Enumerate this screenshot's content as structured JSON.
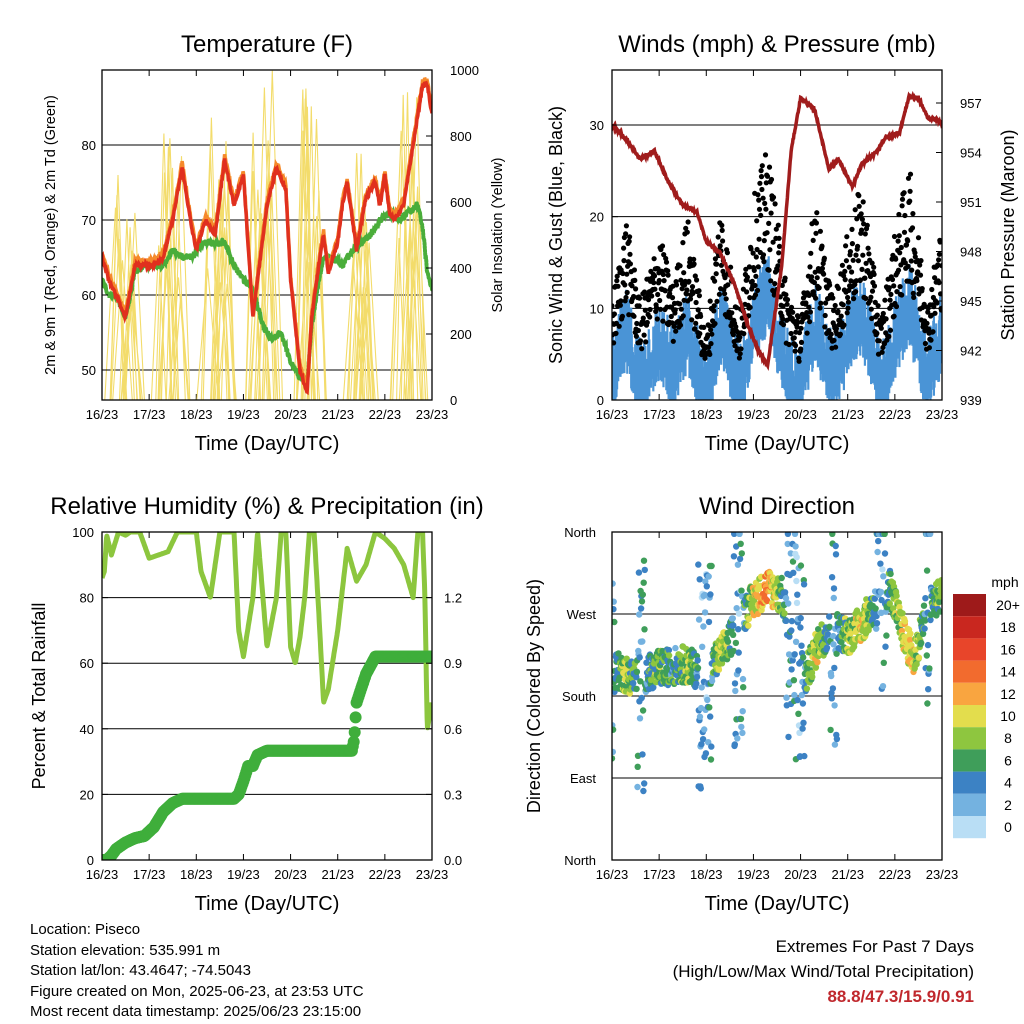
{
  "chart_data": [
    {
      "type": "line",
      "title": "Temperature (F)",
      "xlabel": "Time (Day/UTC)",
      "ylabel": "2m & 9m T (Red, Orange) & 2m Td (Green)",
      "y2label": "Solar Insolation (Yellow)",
      "x_ticks": [
        "16/23",
        "17/23",
        "18/23",
        "19/23",
        "20/23",
        "21/23",
        "22/23",
        "23/23"
      ],
      "y_ticks": [
        "50",
        "60",
        "70",
        "80"
      ],
      "y2_ticks": [
        "0",
        "200",
        "400",
        "600",
        "800",
        "1000"
      ],
      "ylim": [
        46,
        90
      ],
      "y2lim": [
        0,
        1000
      ],
      "grid": true,
      "colors": {
        "t2m": "#e0301e",
        "t9m": "#f5892a",
        "td": "#4aad3a",
        "solar": "#f3dc6b"
      },
      "series": [
        {
          "key": "t2m",
          "x": [
            0,
            0.15,
            0.5,
            0.7,
            0.9,
            1.1,
            1.3,
            1.5,
            1.7,
            1.9,
            2.0,
            2.2,
            2.4,
            2.6,
            2.8,
            3.0,
            3.2,
            3.5,
            3.7,
            3.9,
            4.0,
            4.2,
            4.35,
            4.45,
            4.6,
            4.7,
            4.8,
            5.0,
            5.1,
            5.2,
            5.4,
            5.6,
            5.8,
            5.9,
            6.0,
            6.1,
            6.2,
            6.4,
            6.6,
            6.8,
            6.9,
            7.0
          ],
          "values": [
            65,
            62,
            57,
            64,
            64,
            64,
            65,
            70,
            77,
            69,
            66,
            70,
            68,
            78,
            72,
            76,
            57,
            72,
            77,
            74,
            62,
            50,
            47,
            57,
            64,
            68,
            63,
            67,
            72,
            75,
            66,
            73,
            75,
            72,
            76,
            71,
            70,
            72,
            80,
            88,
            88,
            84
          ]
        },
        {
          "key": "td",
          "x": [
            0,
            0.15,
            0.3,
            0.5,
            0.7,
            0.9,
            1.1,
            1.3,
            1.5,
            1.7,
            1.9,
            2.0,
            2.2,
            2.4,
            2.6,
            2.8,
            3.0,
            3.2,
            3.4,
            3.6,
            3.8,
            4.0,
            4.2,
            4.35,
            4.45,
            4.6,
            4.7,
            4.9,
            5.1,
            5.3,
            5.5,
            5.7,
            5.9,
            6.1,
            6.3,
            6.5,
            6.7,
            6.8,
            6.9,
            7.0
          ],
          "values": [
            62,
            60,
            60,
            57,
            63,
            64,
            64,
            64,
            66,
            65,
            65,
            66,
            67,
            67,
            67,
            64,
            62,
            61,
            56,
            54,
            55,
            51,
            49,
            48,
            56,
            62,
            65,
            65,
            64,
            66,
            67,
            68,
            70,
            71,
            70,
            71,
            72,
            69,
            63,
            61
          ]
        },
        {
          "key": "solar",
          "days": 7
        }
      ]
    },
    {
      "type": "scatter",
      "title": "Winds (mph) & Pressure (mb)",
      "xlabel": "Time (Day/UTC)",
      "ylabel": "Sonic Wind & Gust (Blue, Black)",
      "y2label": "Station Pressure (Maroon)",
      "x_ticks": [
        "16/23",
        "17/23",
        "18/23",
        "19/23",
        "20/23",
        "21/23",
        "22/23",
        "23/23"
      ],
      "y_ticks": [
        "0",
        "10",
        "20",
        "30"
      ],
      "y2_ticks": [
        "939",
        "942",
        "945",
        "948",
        "951",
        "954",
        "957"
      ],
      "ylim": [
        0,
        36
      ],
      "y2lim": [
        939,
        959
      ],
      "grid": true,
      "colors": {
        "wind": "#4a94d6",
        "gust": "#000000",
        "pressure": "#a01c1c"
      },
      "pressure": {
        "x": [
          0,
          0.3,
          0.6,
          0.9,
          1.2,
          1.5,
          1.8,
          2.0,
          2.3,
          2.6,
          2.9,
          3.1,
          3.3,
          3.6,
          3.8,
          4.0,
          4.3,
          4.6,
          4.8,
          5.1,
          5.3,
          5.6,
          5.8,
          6.1,
          6.3,
          6.5,
          6.7,
          6.9,
          7.0
        ],
        "values": [
          955.7,
          954.8,
          953.6,
          954.1,
          952.2,
          950.8,
          950.4,
          948.6,
          947.9,
          946.0,
          943.4,
          942.0,
          941.1,
          947.1,
          954.1,
          957.3,
          956.6,
          953.0,
          953.6,
          951.9,
          953.3,
          954.0,
          954.9,
          955.2,
          957.4,
          957.3,
          956.1,
          956.0,
          955.7
        ]
      },
      "wind_profile": {
        "x": [
          0,
          0.3,
          0.6,
          1.0,
          1.3,
          1.6,
          2.0,
          2.3,
          2.7,
          3.0,
          3.3,
          3.7,
          4.0,
          4.3,
          4.7,
          5.0,
          5.3,
          5.7,
          6.0,
          6.3,
          6.7,
          7.0
        ],
        "values": [
          3,
          8,
          3,
          7,
          4,
          8,
          1,
          9,
          2,
          9,
          12,
          4,
          2,
          9,
          3,
          7,
          10,
          2,
          7,
          11,
          3,
          8
        ]
      }
    },
    {
      "type": "line",
      "title": "Relative Humidity (%) & Precipitation (in)",
      "xlabel": "Time (Day/UTC)",
      "ylabel": "Percent & Total Rainfall",
      "x_ticks": [
        "16/23",
        "17/23",
        "18/23",
        "19/23",
        "20/23",
        "21/23",
        "22/23",
        "23/23"
      ],
      "y_ticks": [
        "0",
        "20",
        "40",
        "60",
        "80",
        "100"
      ],
      "y2_ticks": [
        "0.0",
        "0.3",
        "0.6",
        "0.9",
        "1.2"
      ],
      "ylim": [
        0,
        100
      ],
      "y2lim": [
        0,
        1.5
      ],
      "grid": true,
      "colors": {
        "rh": "#8cc63e",
        "precip": "#3fae3b"
      },
      "rh": {
        "x": [
          0,
          0.05,
          0.1,
          0.2,
          0.35,
          0.5,
          0.6,
          0.8,
          1.0,
          1.2,
          1.4,
          1.6,
          1.75,
          1.9,
          2.0,
          2.1,
          2.3,
          2.5,
          2.6,
          2.8,
          2.9,
          3.0,
          3.2,
          3.3,
          3.5,
          3.7,
          3.8,
          3.9,
          4.0,
          4.1,
          4.2,
          4.3,
          4.4,
          4.5,
          4.6,
          4.7,
          4.8,
          5.0,
          5.2,
          5.4,
          5.6,
          5.8,
          6.0,
          6.2,
          6.4,
          6.6,
          6.7,
          6.8,
          6.85,
          6.9,
          7.0
        ],
        "values": [
          86,
          88,
          99,
          93,
          100,
          99,
          100,
          100,
          92,
          93,
          94,
          100,
          100,
          100,
          100,
          88,
          80,
          100,
          100,
          100,
          70,
          62,
          80,
          100,
          65,
          80,
          100,
          100,
          65,
          60,
          68,
          80,
          100,
          100,
          75,
          48,
          52,
          70,
          95,
          85,
          90,
          100,
          98,
          95,
          90,
          80,
          100,
          100,
          80,
          40,
          48
        ]
      },
      "precip": {
        "x": [
          0,
          0.1,
          0.2,
          0.3,
          0.5,
          0.7,
          0.9,
          1.1,
          1.3,
          1.5,
          1.7,
          1.9,
          2.0,
          2.2,
          2.4,
          2.6,
          2.8,
          2.9,
          3.0,
          3.1,
          3.2,
          3.3,
          3.5,
          3.7,
          3.9,
          4.1,
          4.3,
          4.5,
          4.7,
          4.9,
          5.1,
          5.3,
          5.35,
          5.4,
          5.6,
          5.8,
          6.0,
          6.5,
          7.0
        ],
        "values": [
          0,
          0,
          0.02,
          0.05,
          0.08,
          0.1,
          0.11,
          0.15,
          0.22,
          0.26,
          0.28,
          0.28,
          0.28,
          0.28,
          0.28,
          0.28,
          0.28,
          0.3,
          0.36,
          0.43,
          0.43,
          0.48,
          0.5,
          0.5,
          0.5,
          0.5,
          0.5,
          0.5,
          0.5,
          0.5,
          0.5,
          0.5,
          0.55,
          0.72,
          0.85,
          0.93,
          0.93,
          0.93,
          0.93
        ]
      }
    },
    {
      "type": "scatter",
      "title": "Wind Direction",
      "xlabel": "Time (Day/UTC)",
      "ylabel": "Direction (Colored By Speed)",
      "x_ticks": [
        "16/23",
        "17/23",
        "18/23",
        "19/23",
        "20/23",
        "21/23",
        "22/23",
        "23/23"
      ],
      "y_ticks": [
        "North",
        "West",
        "South",
        "East",
        "North"
      ],
      "grid": true,
      "colorbar": {
        "title": "mph",
        "labels": [
          "20+",
          "18",
          "16",
          "14",
          "12",
          "10",
          "8",
          "6",
          "4",
          "2",
          "0"
        ],
        "colors": [
          "#9e1a1a",
          "#c9271f",
          "#e8452a",
          "#f26b2e",
          "#f9a540",
          "#e3dd4d",
          "#8ec63f",
          "#3f9e5a",
          "#3c82c4",
          "#74b2e0",
          "#b9def5"
        ]
      },
      "direction_profile": {
        "x": [
          0,
          0.5,
          1.0,
          1.5,
          2.0,
          2.3,
          2.6,
          2.8,
          3.0,
          3.3,
          3.6,
          3.8,
          4.1,
          4.4,
          4.7,
          5.0,
          5.3,
          5.6,
          5.9,
          6.1,
          6.4,
          6.7,
          7.0
        ],
        "values": [
          210,
          200,
          210,
          215,
          205,
          225,
          250,
          270,
          285,
          300,
          290,
          250,
          200,
          240,
          255,
          245,
          260,
          280,
          300,
          260,
          220,
          280,
          290
        ]
      }
    }
  ],
  "footer": {
    "location": "Location: Piseco",
    "elevation": "Station elevation: 535.991 m",
    "latlon": "Station lat/lon: 43.4647; -74.5043",
    "created": "Figure created on Mon, 2025-06-23, at 23:53 UTC",
    "recent": "Most recent data timestamp: 2025/06/23 23:15:00"
  },
  "extremes": {
    "title": "Extremes For Past 7 Days",
    "subtitle": "(High/Low/Max Wind/Total Precipitation)",
    "values": "88.8/47.3/15.9/0.91"
  }
}
